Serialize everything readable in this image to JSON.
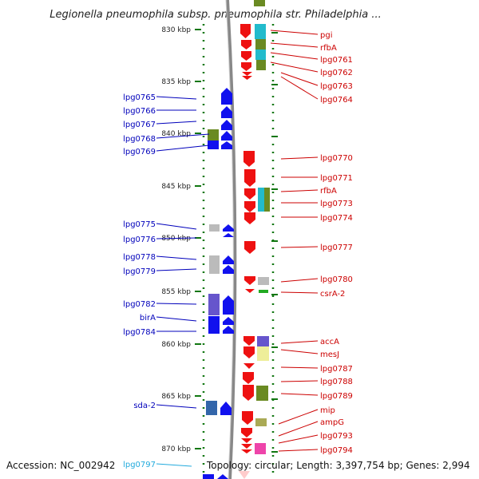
{
  "title": "Legionella pneumophila subsp. pneumophila str. Philadelphia ...",
  "footer": {
    "accession": "Accession: NC_002942",
    "topology": "Topology: circular; Length: 3,397,754 bp; Genes: 2,994"
  },
  "scale": {
    "ticks": [
      "830 kbp",
      "835 kbp",
      "840 kbp",
      "845 kbp",
      "850 kbp",
      "855 kbp",
      "860 kbp",
      "865 kbp",
      "870 kbp"
    ]
  },
  "colors": {
    "forward_strand": "#ee1111",
    "reverse_strand": "#1111ee",
    "label_right": "#cc0000",
    "label_left": "#0000bb",
    "label_highlight": "#22aadd",
    "backbone": "#888888",
    "tick": "#117711"
  },
  "left_labels": [
    "lpg0765",
    "lpg0766",
    "lpg0767",
    "lpg0768",
    "lpg0769",
    "lpg0775",
    "lpg0776",
    "lpg0778",
    "lpg0779",
    "lpg0782",
    "birA",
    "lpg0784",
    "sda-2",
    "lpg0797"
  ],
  "right_labels": [
    "pgi",
    "rfbA",
    "lpg0761",
    "lpg0762",
    "lpg0763",
    "lpg0764",
    "lpg0770",
    "lpg0771",
    "rfbA",
    "lpg0773",
    "lpg0774",
    "lpg0777",
    "lpg0780",
    "csrA-2",
    "accA",
    "mesJ",
    "lpg0787",
    "lpg0788",
    "lpg0789",
    "mip",
    "ampG",
    "lpg0793",
    "lpg0794"
  ]
}
